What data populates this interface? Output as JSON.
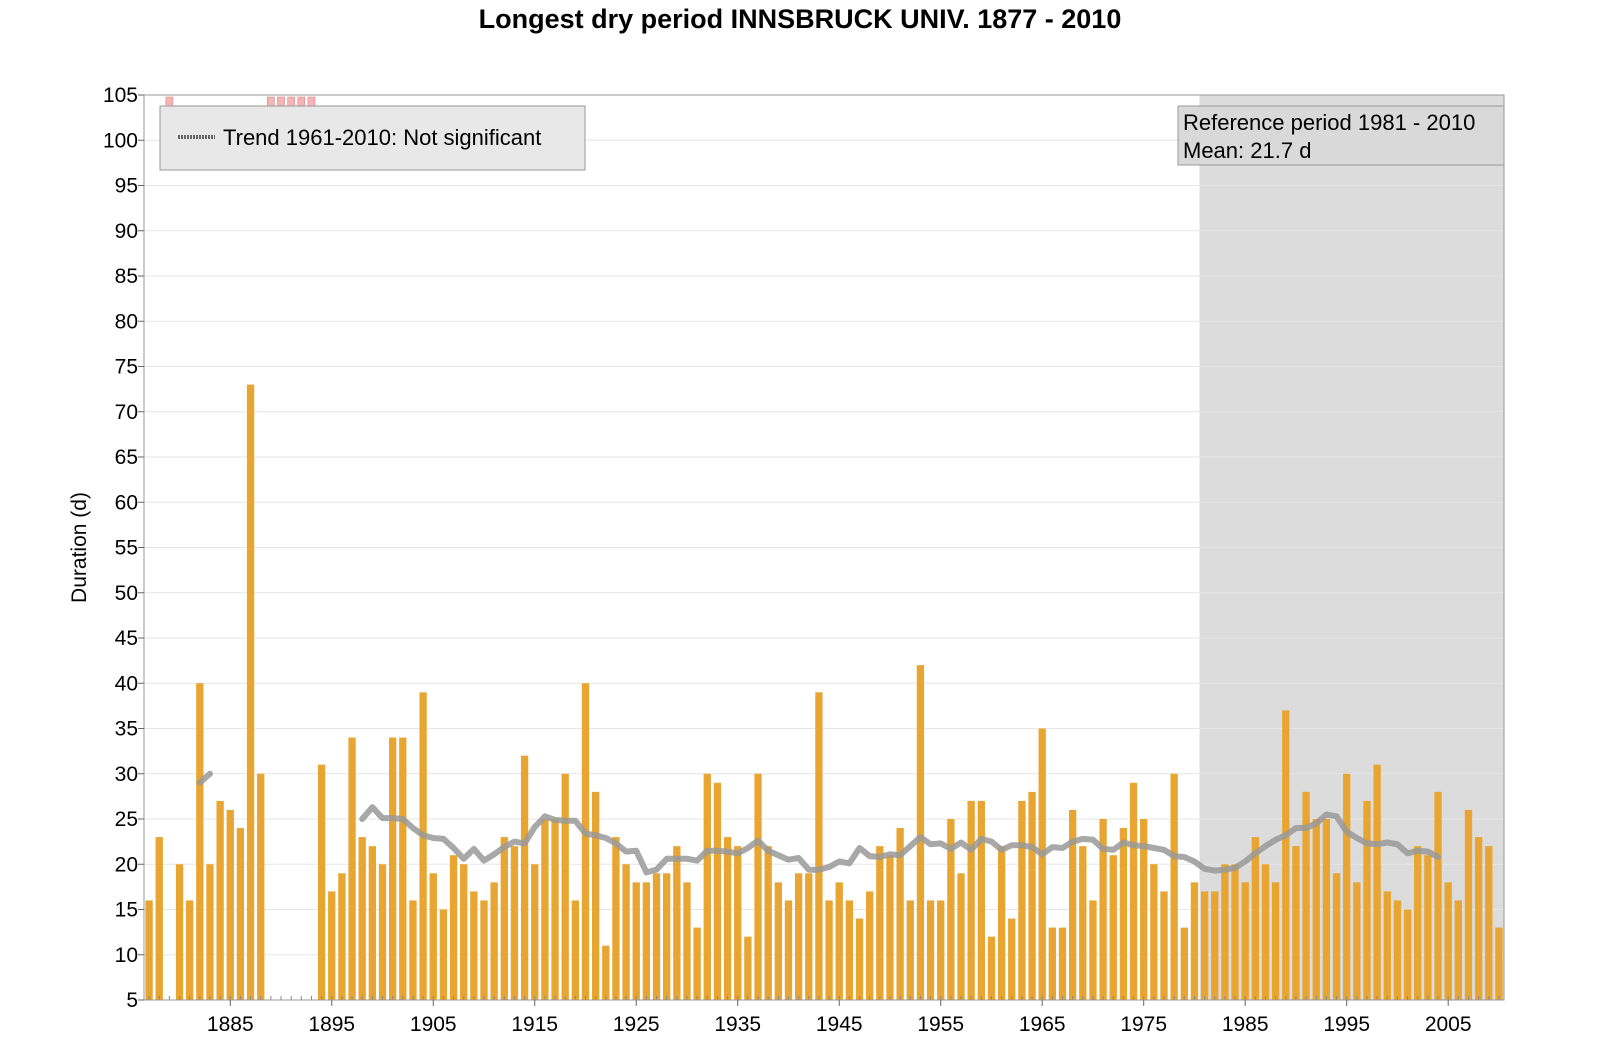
{
  "chart_data": {
    "type": "bar",
    "title": "Longest dry period INNSBRUCK UNIV. 1877 - 2010",
    "ylabel": "Duration (d)",
    "xlabel": "",
    "ylim": [
      5,
      105
    ],
    "yticks": [
      5,
      10,
      15,
      20,
      25,
      30,
      35,
      40,
      45,
      50,
      55,
      60,
      65,
      70,
      75,
      80,
      85,
      90,
      95,
      100,
      105
    ],
    "xticks": [
      1885,
      1895,
      1905,
      1915,
      1925,
      1935,
      1945,
      1955,
      1965,
      1975,
      1985,
      1995,
      2005
    ],
    "x_range": [
      1877,
      2010
    ],
    "grid": true,
    "bar_color": "#E8A531",
    "trend_color": "#999999",
    "reference_shading_color": "#DCDCDC",
    "missing_marker_color": "#F4B4B4",
    "legend": {
      "placement": "top-left",
      "label": "Trend 1961-2010: Not significant"
    },
    "reference_box": {
      "placement": "top-right",
      "line1": "Reference period 1981 - 2010",
      "line2": "Mean: 21.7 d",
      "period": [
        1981,
        2010
      ]
    },
    "series": [
      {
        "name": "Longest dry period",
        "years": [
          1877,
          1878,
          1879,
          1880,
          1881,
          1882,
          1883,
          1884,
          1885,
          1886,
          1887,
          1888,
          1889,
          1890,
          1891,
          1892,
          1893,
          1894,
          1895,
          1896,
          1897,
          1898,
          1899,
          1900,
          1901,
          1902,
          1903,
          1904,
          1905,
          1906,
          1907,
          1908,
          1909,
          1910,
          1911,
          1912,
          1913,
          1914,
          1915,
          1916,
          1917,
          1918,
          1919,
          1920,
          1921,
          1922,
          1923,
          1924,
          1925,
          1926,
          1927,
          1928,
          1929,
          1930,
          1931,
          1932,
          1933,
          1934,
          1935,
          1936,
          1937,
          1938,
          1939,
          1940,
          1941,
          1942,
          1943,
          1944,
          1945,
          1946,
          1947,
          1948,
          1949,
          1950,
          1951,
          1952,
          1953,
          1954,
          1955,
          1956,
          1957,
          1958,
          1959,
          1960,
          1961,
          1962,
          1963,
          1964,
          1965,
          1966,
          1967,
          1968,
          1969,
          1970,
          1971,
          1972,
          1973,
          1974,
          1975,
          1976,
          1977,
          1978,
          1979,
          1980,
          1981,
          1982,
          1983,
          1984,
          1985,
          1986,
          1987,
          1988,
          1989,
          1990,
          1991,
          1992,
          1993,
          1994,
          1995,
          1996,
          1997,
          1998,
          1999,
          2000,
          2001,
          2002,
          2003,
          2004,
          2005,
          2006,
          2007,
          2008,
          2009,
          2010
        ],
        "values": [
          16,
          23,
          null,
          20,
          16,
          40,
          20,
          27,
          26,
          24,
          73,
          30,
          null,
          null,
          null,
          null,
          null,
          31,
          17,
          19,
          34,
          23,
          22,
          20,
          34,
          34,
          16,
          39,
          19,
          15,
          21,
          20,
          17,
          16,
          18,
          23,
          22,
          32,
          20,
          25,
          25,
          30,
          16,
          40,
          28,
          11,
          23,
          20,
          18,
          18,
          19,
          19,
          22,
          18,
          13,
          30,
          29,
          23,
          22,
          12,
          30,
          22,
          18,
          16,
          19,
          19,
          39,
          16,
          18,
          16,
          14,
          17,
          22,
          21,
          24,
          16,
          42,
          16,
          16,
          25,
          19,
          27,
          27,
          12,
          22,
          14,
          27,
          28,
          35,
          13,
          13,
          26,
          22,
          16,
          25,
          21,
          24,
          29,
          25,
          20,
          17,
          30,
          13,
          18,
          17,
          17,
          20,
          20,
          18,
          23,
          20,
          18,
          37,
          22,
          28,
          25,
          25,
          19,
          30,
          18,
          27,
          31,
          17,
          16,
          15,
          22,
          21,
          28,
          18,
          16,
          26,
          23,
          22,
          13
        ]
      },
      {
        "name": "Trend",
        "years": [
          1882,
          1883,
          null,
          1898,
          1899,
          1900,
          1901,
          1902,
          1903,
          1904,
          1905,
          1906,
          1907,
          1908,
          1909,
          1910,
          1911,
          1912,
          1913,
          1914,
          1915,
          1916,
          1917,
          1918,
          1919,
          1920,
          1921,
          1922,
          1923,
          1924,
          1925,
          1926,
          1927,
          1928,
          1929,
          1930,
          1931,
          1932,
          1933,
          1934,
          1935,
          1936,
          1937,
          1938,
          1939,
          1940,
          1941,
          1942,
          1943,
          1944,
          1945,
          1946,
          1947,
          1948,
          1949,
          1950,
          1951,
          1952,
          1953,
          1954,
          1955,
          1956,
          1957,
          1958,
          1959,
          1960,
          1961,
          1962,
          1963,
          1964,
          1965,
          1966,
          1967,
          1968,
          1969,
          1970,
          1971,
          1972,
          1973,
          1974,
          1975,
          1976,
          1977,
          1978,
          1979,
          1980,
          1981,
          1982,
          1983,
          1984,
          1985,
          1986,
          1987,
          1988,
          1989,
          1990,
          1991,
          1992,
          1993,
          1994,
          1995,
          1996,
          1997,
          1998,
          1999,
          2000,
          2001,
          2002,
          2003,
          2004
        ],
        "values": [
          29,
          30,
          null,
          25,
          26.3,
          25.1,
          25.1,
          25,
          24,
          23.2,
          22.9,
          22.8,
          21.8,
          20.6,
          21.7,
          20.4,
          21.1,
          21.9,
          22.5,
          22.3,
          24.1,
          25.3,
          24.9,
          24.8,
          24.8,
          23.4,
          23.2,
          22.9,
          22.3,
          21.4,
          21.5,
          19.1,
          19.4,
          20.6,
          20.6,
          20.6,
          20.4,
          21.5,
          21.5,
          21.4,
          21.2,
          21.8,
          22.6,
          21.5,
          21,
          20.5,
          20.7,
          19.4,
          19.4,
          19.7,
          20.3,
          20.1,
          21.8,
          20.9,
          20.8,
          21.1,
          21,
          22,
          23,
          22.2,
          22.3,
          21.7,
          22.4,
          21.6,
          22.8,
          22.5,
          21.6,
          22.1,
          22.1,
          21.9,
          21.1,
          21.9,
          21.8,
          22.5,
          22.8,
          22.7,
          21.7,
          21.6,
          22.4,
          22.1,
          22,
          21.8,
          21.6,
          20.9,
          20.8,
          20.3,
          19.5,
          19.3,
          19.4,
          19.6,
          20.3,
          21.2,
          22,
          22.7,
          23.2,
          24,
          24,
          24.5,
          25.5,
          25.3,
          23.6,
          22.9,
          22.3,
          22.2,
          22.4,
          22.2,
          21.2,
          21.5,
          21.4,
          20.8
        ]
      }
    ],
    "missing_years": [
      1879,
      1889,
      1890,
      1891,
      1892,
      1893
    ]
  }
}
